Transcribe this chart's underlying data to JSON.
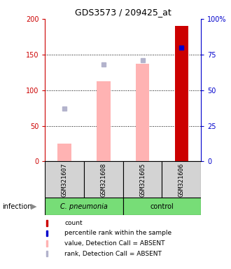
{
  "title": "GDS3573 / 209425_at",
  "samples": [
    "GSM321607",
    "GSM321608",
    "GSM321605",
    "GSM321606"
  ],
  "ylim_left": [
    0,
    200
  ],
  "ylim_right": [
    0,
    100
  ],
  "yticks_left": [
    0,
    50,
    100,
    150,
    200
  ],
  "yticks_right": [
    0,
    25,
    50,
    75,
    100
  ],
  "ytick_labels_left": [
    "0",
    "50",
    "100",
    "150",
    "200"
  ],
  "ytick_labels_right": [
    "0",
    "25",
    "50",
    "75",
    "100%"
  ],
  "left_axis_color": "#cc0000",
  "right_axis_color": "#0000cc",
  "bar_values": [
    25,
    112,
    137,
    190
  ],
  "bar_colors_value": [
    "#ffb3b3",
    "#ffb3b3",
    "#ffb3b3",
    "#cc0000"
  ],
  "rank_values": [
    37,
    68,
    71,
    80
  ],
  "rank_dot_colors": [
    "#b3b3cc",
    "#b3b3cc",
    "#b3b3cc",
    "#0000cc"
  ],
  "dotted_line_y": [
    50,
    100,
    150
  ],
  "group_label_cpneumonia": "C. pneumonia",
  "group_label_control": "control",
  "infection_label": "infection",
  "legend_items": [
    {
      "color": "#cc0000",
      "label": "count"
    },
    {
      "color": "#0000cc",
      "label": "percentile rank within the sample"
    },
    {
      "color": "#ffb3b3",
      "label": "value, Detection Call = ABSENT"
    },
    {
      "color": "#b3b3cc",
      "label": "rank, Detection Call = ABSENT"
    }
  ],
  "sample_box_color": "#d3d3d3",
  "group_box_color": "#77dd77"
}
